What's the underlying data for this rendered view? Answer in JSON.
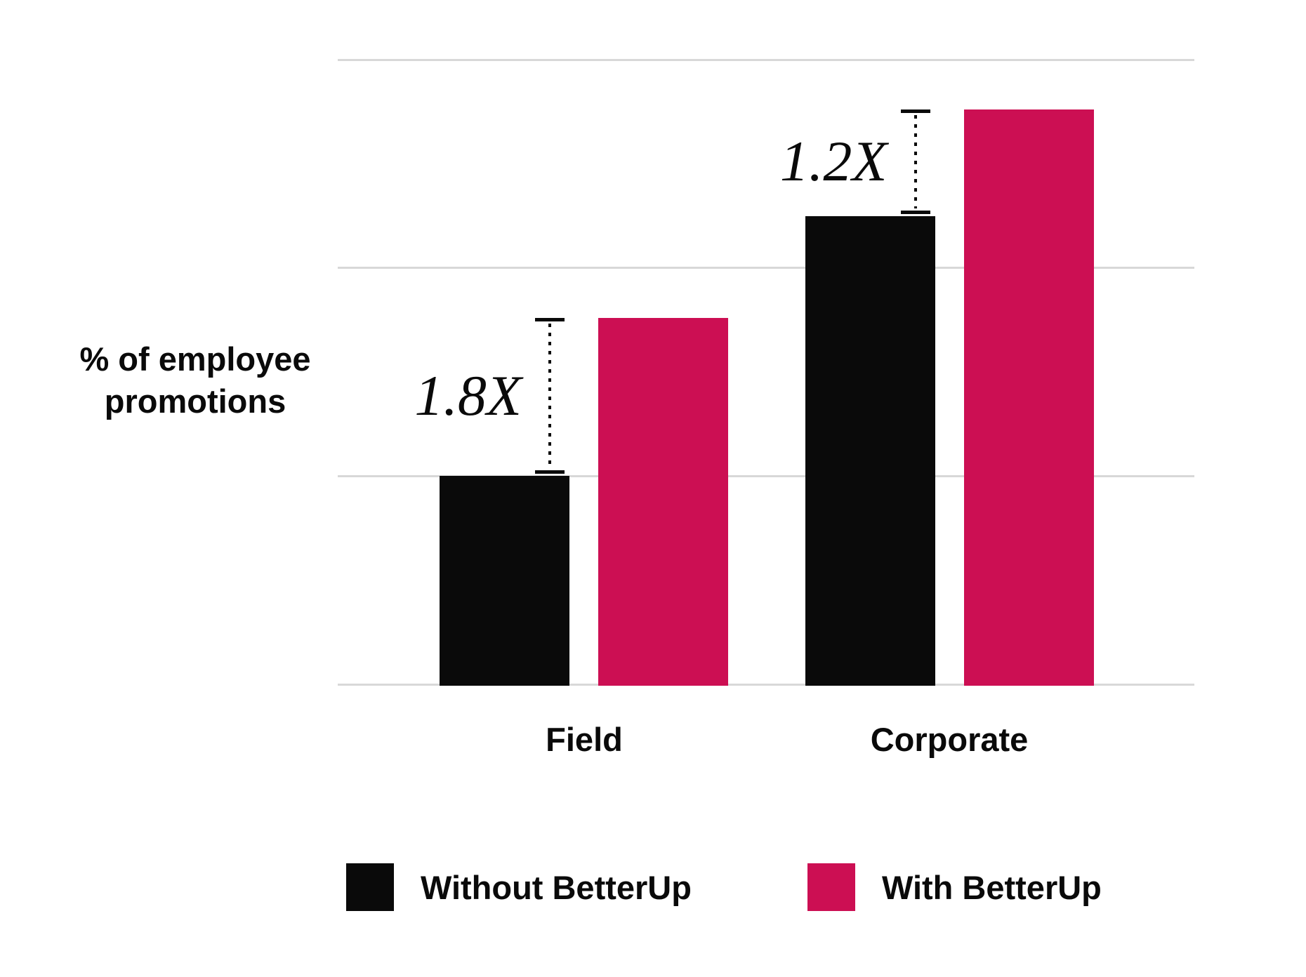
{
  "chart_data": {
    "type": "bar",
    "title": "",
    "ylabel": "% of employee promotions",
    "ylabel_lines": [
      "% of employee",
      "promotions"
    ],
    "categories": [
      "Field",
      "Corporate"
    ],
    "series": [
      {
        "name": "Without BetterUp",
        "color": "#0a0a0a",
        "values": [
          1.0,
          2.25
        ]
      },
      {
        "name": "With BetterUp",
        "color": "#cc0f53",
        "values": [
          1.76,
          2.76
        ]
      }
    ],
    "annotations": [
      {
        "category_index": 0,
        "label": "1.8X"
      },
      {
        "category_index": 1,
        "label": "1.2X"
      }
    ],
    "ylim": [
      0,
      3
    ],
    "y_ticks_visible": false,
    "grid": true,
    "gridline_color": "#d8d8d8",
    "legend_position": "bottom"
  }
}
